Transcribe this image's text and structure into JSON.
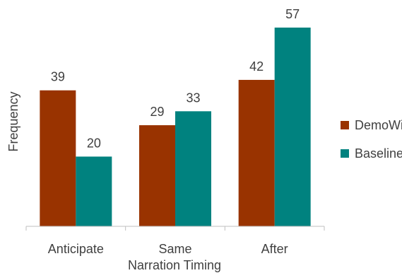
{
  "chart_data": {
    "type": "bar",
    "title": "",
    "xlabel": "Narration Timing",
    "ylabel": "Frequency",
    "categories": [
      "Anticipate",
      "Same",
      "After"
    ],
    "series": [
      {
        "name": "DemoWiz",
        "values": [
          39,
          29,
          42
        ],
        "color": "#993300"
      },
      {
        "name": "Baseline",
        "values": [
          20,
          33,
          57
        ],
        "color": "#00827f"
      }
    ],
    "ylim": [
      0,
      60
    ],
    "grid": false,
    "legend_position": "right"
  }
}
